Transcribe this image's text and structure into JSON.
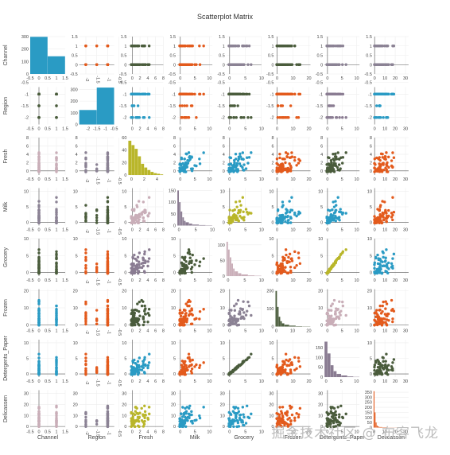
{
  "chart_data": {
    "type": "scatter",
    "title": "Scatterplot Matrix",
    "variables": [
      "Channel",
      "Region",
      "Fresh",
      "Milk",
      "Grocery",
      "Frozen",
      "Detergents_Paper",
      "Delicassen"
    ],
    "colors": {
      "blue": "#2a9bc4",
      "orange": "#e35a1c",
      "darkgreen": "#4a5c3c",
      "gray": "#8b8294",
      "pink": "#c9aeb8",
      "olive": "#b9b62a",
      "purple": "#8a7c92"
    },
    "axis_ranges": [
      [
        -0.5,
        1.5
      ],
      [
        -2.3,
        -0.7
      ],
      [
        -1,
        8
      ],
      [
        -1,
        11
      ],
      [
        -1,
        10
      ],
      [
        -1,
        21
      ],
      [
        -1,
        11
      ],
      [
        -1,
        33
      ]
    ],
    "ticks": [
      [
        -0.5,
        0,
        0.5,
        1,
        1.5
      ],
      [
        -2,
        -1.5,
        -1,
        -0.5
      ],
      [
        0,
        2,
        4,
        6,
        8
      ],
      [
        0,
        5,
        10
      ],
      [
        0,
        5,
        10
      ],
      [
        0,
        10,
        20
      ],
      [
        0,
        5,
        10
      ],
      [
        0,
        10,
        20,
        30
      ]
    ],
    "histograms": [
      {
        "variable": "Channel",
        "bin_edges": [
          -0.5,
          0.5,
          1.5
        ],
        "counts": [
          298,
          142
        ],
        "ylim": [
          0,
          300
        ],
        "yticks": [
          0,
          100,
          200,
          300
        ]
      },
      {
        "variable": "Region",
        "bin_edges": [
          -2.5,
          -1.5,
          -0.5
        ],
        "counts": [
          124,
          316
        ],
        "ylim": [
          0,
          320
        ],
        "yticks": [
          0,
          100,
          200,
          300
        ]
      },
      {
        "variable": "Fresh",
        "bin_edges": [
          -0.5,
          0,
          0.5,
          1,
          1.5,
          2,
          2.5,
          3,
          3.5,
          4,
          4.5,
          5
        ],
        "counts": [
          55,
          48,
          42,
          30,
          18,
          12,
          8,
          5,
          3,
          2,
          1
        ],
        "ylim": [
          0,
          60
        ],
        "yticks": [
          0,
          20,
          40,
          60
        ]
      },
      {
        "variable": "Milk",
        "bin_edges": [
          -0.5,
          0,
          0.5,
          1,
          1.5,
          2,
          3,
          4,
          6,
          8,
          10
        ],
        "counts": [
          150,
          100,
          60,
          35,
          20,
          14,
          8,
          4,
          2,
          1
        ],
        "ylim": [
          0,
          160
        ],
        "yticks": [
          0,
          50,
          100,
          150
        ]
      },
      {
        "variable": "Grocery",
        "bin_edges": [
          -0.5,
          0,
          0.5,
          1,
          1.5,
          2,
          3,
          4,
          6,
          8,
          10
        ],
        "counts": [
          110,
          85,
          60,
          40,
          24,
          15,
          9,
          5,
          2,
          1
        ],
        "ylim": [
          0,
          120
        ],
        "yticks": [
          0,
          50,
          100
        ]
      },
      {
        "variable": "Frozen",
        "bin_edges": [
          -0.5,
          0.5,
          1.5,
          2.5,
          3.5,
          5,
          8,
          12,
          16,
          21
        ],
        "counts": [
          200,
          110,
          55,
          30,
          18,
          10,
          5,
          2,
          1
        ],
        "ylim": [
          0,
          210
        ],
        "yticks": [
          0,
          100,
          200
        ]
      },
      {
        "variable": "Detergents_Paper",
        "bin_edges": [
          -0.5,
          0.5,
          1.5,
          2.5,
          3.5,
          5,
          7,
          9,
          11
        ],
        "counts": [
          180,
          120,
          60,
          30,
          16,
          8,
          3,
          1
        ],
        "ylim": [
          0,
          190
        ],
        "yticks": [
          0,
          50,
          100,
          150
        ]
      },
      {
        "variable": "Delicassen",
        "bin_edges": [
          -0.5,
          0.5,
          1.5,
          2.5,
          3.5,
          5,
          8,
          12,
          20,
          33
        ],
        "counts": [
          360,
          150,
          50,
          20,
          10,
          5,
          3,
          1,
          1
        ],
        "ylim": [
          0,
          370
        ],
        "yticks": [
          0,
          50,
          100,
          150,
          200,
          250,
          300,
          350
        ]
      }
    ],
    "cell_colors": [
      [
        null,
        "orange",
        "darkgreen",
        "orange",
        "gray",
        "darkgreen",
        "gray",
        "gray"
      ],
      [
        "darkgreen",
        null,
        "blue",
        "orange",
        "darkgreen",
        "orange",
        "purple",
        "blue"
      ],
      [
        "pink",
        "gray",
        "olive",
        "blue",
        "blue",
        "orange",
        "darkgreen",
        "orange"
      ],
      [
        "gray",
        "darkgreen",
        "pink",
        "gray",
        "olive",
        "blue",
        "blue",
        "orange"
      ],
      [
        "darkgreen",
        "orange",
        "purple",
        "darkgreen",
        "gray",
        "orange",
        "olive",
        "blue"
      ],
      [
        "blue",
        "orange",
        "darkgreen",
        "orange",
        "gray",
        "darkgreen",
        "pink",
        "orange"
      ],
      [
        "blue",
        "orange",
        "blue",
        "orange",
        "darkgreen",
        "orange",
        "purple",
        "darkgreen"
      ],
      [
        "pink",
        "gray",
        "olive",
        "blue",
        "blue",
        "orange",
        "darkgreen",
        "orange"
      ]
    ],
    "hist_colors": [
      "blue",
      "blue",
      "olive",
      "purple",
      "pink",
      "darkgreen",
      "purple",
      "orange"
    ],
    "grid": true,
    "legend": "none"
  },
  "watermark": "掘金技术社区 @ 布客飞龙"
}
